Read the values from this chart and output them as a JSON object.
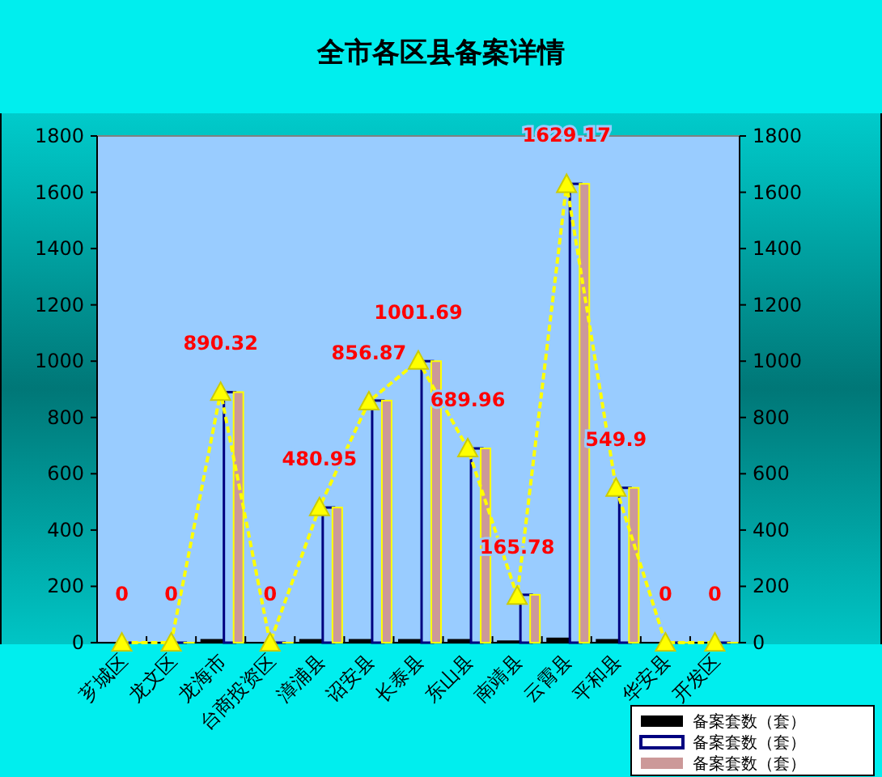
{
  "chart_data": {
    "type": "bar",
    "title": "全市各区县备案详情",
    "categories": [
      "芗城区",
      "龙文区",
      "龙海市",
      "台商投资区",
      "漳浦县",
      "诏安县",
      "长泰县",
      "东山县",
      "南靖县",
      "云霄县",
      "平和县",
      "华安县",
      "开发区"
    ],
    "series": [
      {
        "name": "备案套数（套）",
        "color": "#000000",
        "values": [
          0,
          0,
          10,
          0,
          10,
          10,
          10,
          10,
          5,
          15,
          10,
          0,
          0
        ]
      },
      {
        "name": "备案套数（套）",
        "color": "#000080",
        "values": [
          0,
          0,
          890,
          0,
          480,
          860,
          1000,
          690,
          170,
          1630,
          550,
          0,
          0
        ]
      },
      {
        "name": "备案套数（套）",
        "color": "#cc9999",
        "values": [
          0,
          0,
          890,
          0,
          480,
          860,
          1000,
          690,
          170,
          1630,
          550,
          0,
          0
        ]
      },
      {
        "type": "line",
        "color": "#ffff00",
        "marker": "triangle",
        "line_style": "dashed",
        "values": [
          0,
          0,
          890.32,
          0,
          480.95,
          856.87,
          1001.69,
          689.96,
          165.78,
          1629.17,
          549.9,
          0,
          0
        ],
        "value_labels": [
          "0",
          "0",
          "890.32",
          "0",
          "480.95",
          "856.87",
          "1001.69",
          "689.96",
          "165.78",
          "1629.17",
          "549.9",
          "0",
          "0"
        ]
      }
    ],
    "ylim": [
      0,
      1800
    ],
    "yticks": [
      0,
      200,
      400,
      600,
      800,
      1000,
      1200,
      1400,
      1600,
      1800
    ],
    "y2lim": [
      0,
      1800
    ],
    "y2ticks": [
      0,
      200,
      400,
      600,
      800,
      1000,
      1200,
      1400,
      1600,
      1800
    ],
    "legend": "bottom right",
    "grid": false
  }
}
